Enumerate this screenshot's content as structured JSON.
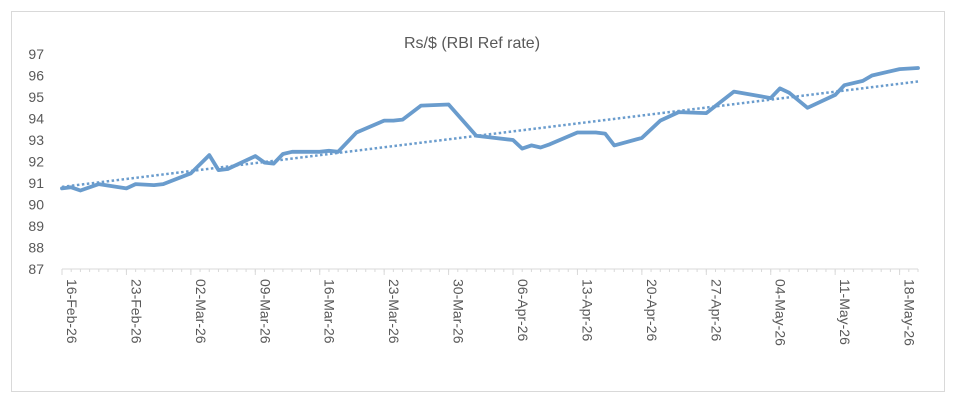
{
  "chart_data": {
    "type": "line",
    "title": "Rs/$ (RBI Ref rate)",
    "xlabel": "",
    "ylabel": "",
    "ylim": [
      87,
      97
    ],
    "yticks": [
      87,
      88,
      89,
      90,
      91,
      92,
      93,
      94,
      95,
      96,
      97
    ],
    "xlim": [
      "2026-02-16",
      "2026-05-20"
    ],
    "xticks": [
      {
        "date": "2026-02-16",
        "label": "16-Feb-26"
      },
      {
        "date": "2026-02-23",
        "label": "23-Feb-26"
      },
      {
        "date": "2026-03-02",
        "label": "02-Mar-26"
      },
      {
        "date": "2026-03-09",
        "label": "09-Mar-26"
      },
      {
        "date": "2026-03-16",
        "label": "16-Mar-26"
      },
      {
        "date": "2026-03-23",
        "label": "23-Mar-26"
      },
      {
        "date": "2026-03-30",
        "label": "30-Mar-26"
      },
      {
        "date": "2026-04-06",
        "label": "06-Apr-26"
      },
      {
        "date": "2026-04-13",
        "label": "13-Apr-26"
      },
      {
        "date": "2026-04-20",
        "label": "20-Apr-26"
      },
      {
        "date": "2026-04-27",
        "label": "27-Apr-26"
      },
      {
        "date": "2026-05-04",
        "label": "04-May-26"
      },
      {
        "date": "2026-05-11",
        "label": "11-May-26"
      },
      {
        "date": "2026-05-18",
        "label": "18-May-26"
      }
    ],
    "grid": false,
    "legend": "none",
    "colors": {
      "series": "#6a9ccd",
      "trend": "#6a9ccd",
      "axis": "#d9d9d9",
      "text": "#595959"
    },
    "series": [
      {
        "type": "line",
        "x": [
          "2026-02-16",
          "2026-02-17",
          "2026-02-18",
          "2026-02-20",
          "2026-02-23",
          "2026-02-24",
          "2026-02-26",
          "2026-02-27",
          "2026-03-02",
          "2026-03-04",
          "2026-03-05",
          "2026-03-06",
          "2026-03-09",
          "2026-03-10",
          "2026-03-11",
          "2026-03-12",
          "2026-03-13",
          "2026-03-16",
          "2026-03-17",
          "2026-03-18",
          "2026-03-20",
          "2026-03-23",
          "2026-03-24",
          "2026-03-25",
          "2026-03-27",
          "2026-03-30",
          "2026-04-02",
          "2026-04-06",
          "2026-04-07",
          "2026-04-08",
          "2026-04-09",
          "2026-04-10",
          "2026-04-13",
          "2026-04-15",
          "2026-04-16",
          "2026-04-17",
          "2026-04-20",
          "2026-04-22",
          "2026-04-24",
          "2026-04-27",
          "2026-04-30",
          "2026-05-04",
          "2026-05-05",
          "2026-05-06",
          "2026-05-08",
          "2026-05-11",
          "2026-05-12",
          "2026-05-14",
          "2026-05-15",
          "2026-05-18",
          "2026-05-20"
        ],
        "values": [
          90.75,
          90.8,
          90.65,
          90.95,
          90.75,
          90.95,
          90.9,
          90.95,
          91.45,
          92.3,
          91.6,
          91.65,
          92.25,
          91.95,
          91.9,
          92.35,
          92.45,
          92.45,
          92.5,
          92.45,
          93.35,
          93.9,
          93.9,
          93.95,
          94.6,
          94.65,
          93.2,
          93.0,
          92.6,
          92.75,
          92.65,
          92.8,
          93.35,
          93.35,
          93.3,
          92.75,
          93.1,
          93.9,
          94.3,
          94.25,
          95.25,
          94.95,
          95.4,
          95.2,
          94.5,
          95.1,
          95.55,
          95.75,
          96.0,
          96.3,
          96.35
        ]
      },
      {
        "type": "trend",
        "x": [
          "2026-02-16",
          "2026-05-20"
        ],
        "values": [
          90.82,
          95.72
        ]
      }
    ]
  }
}
